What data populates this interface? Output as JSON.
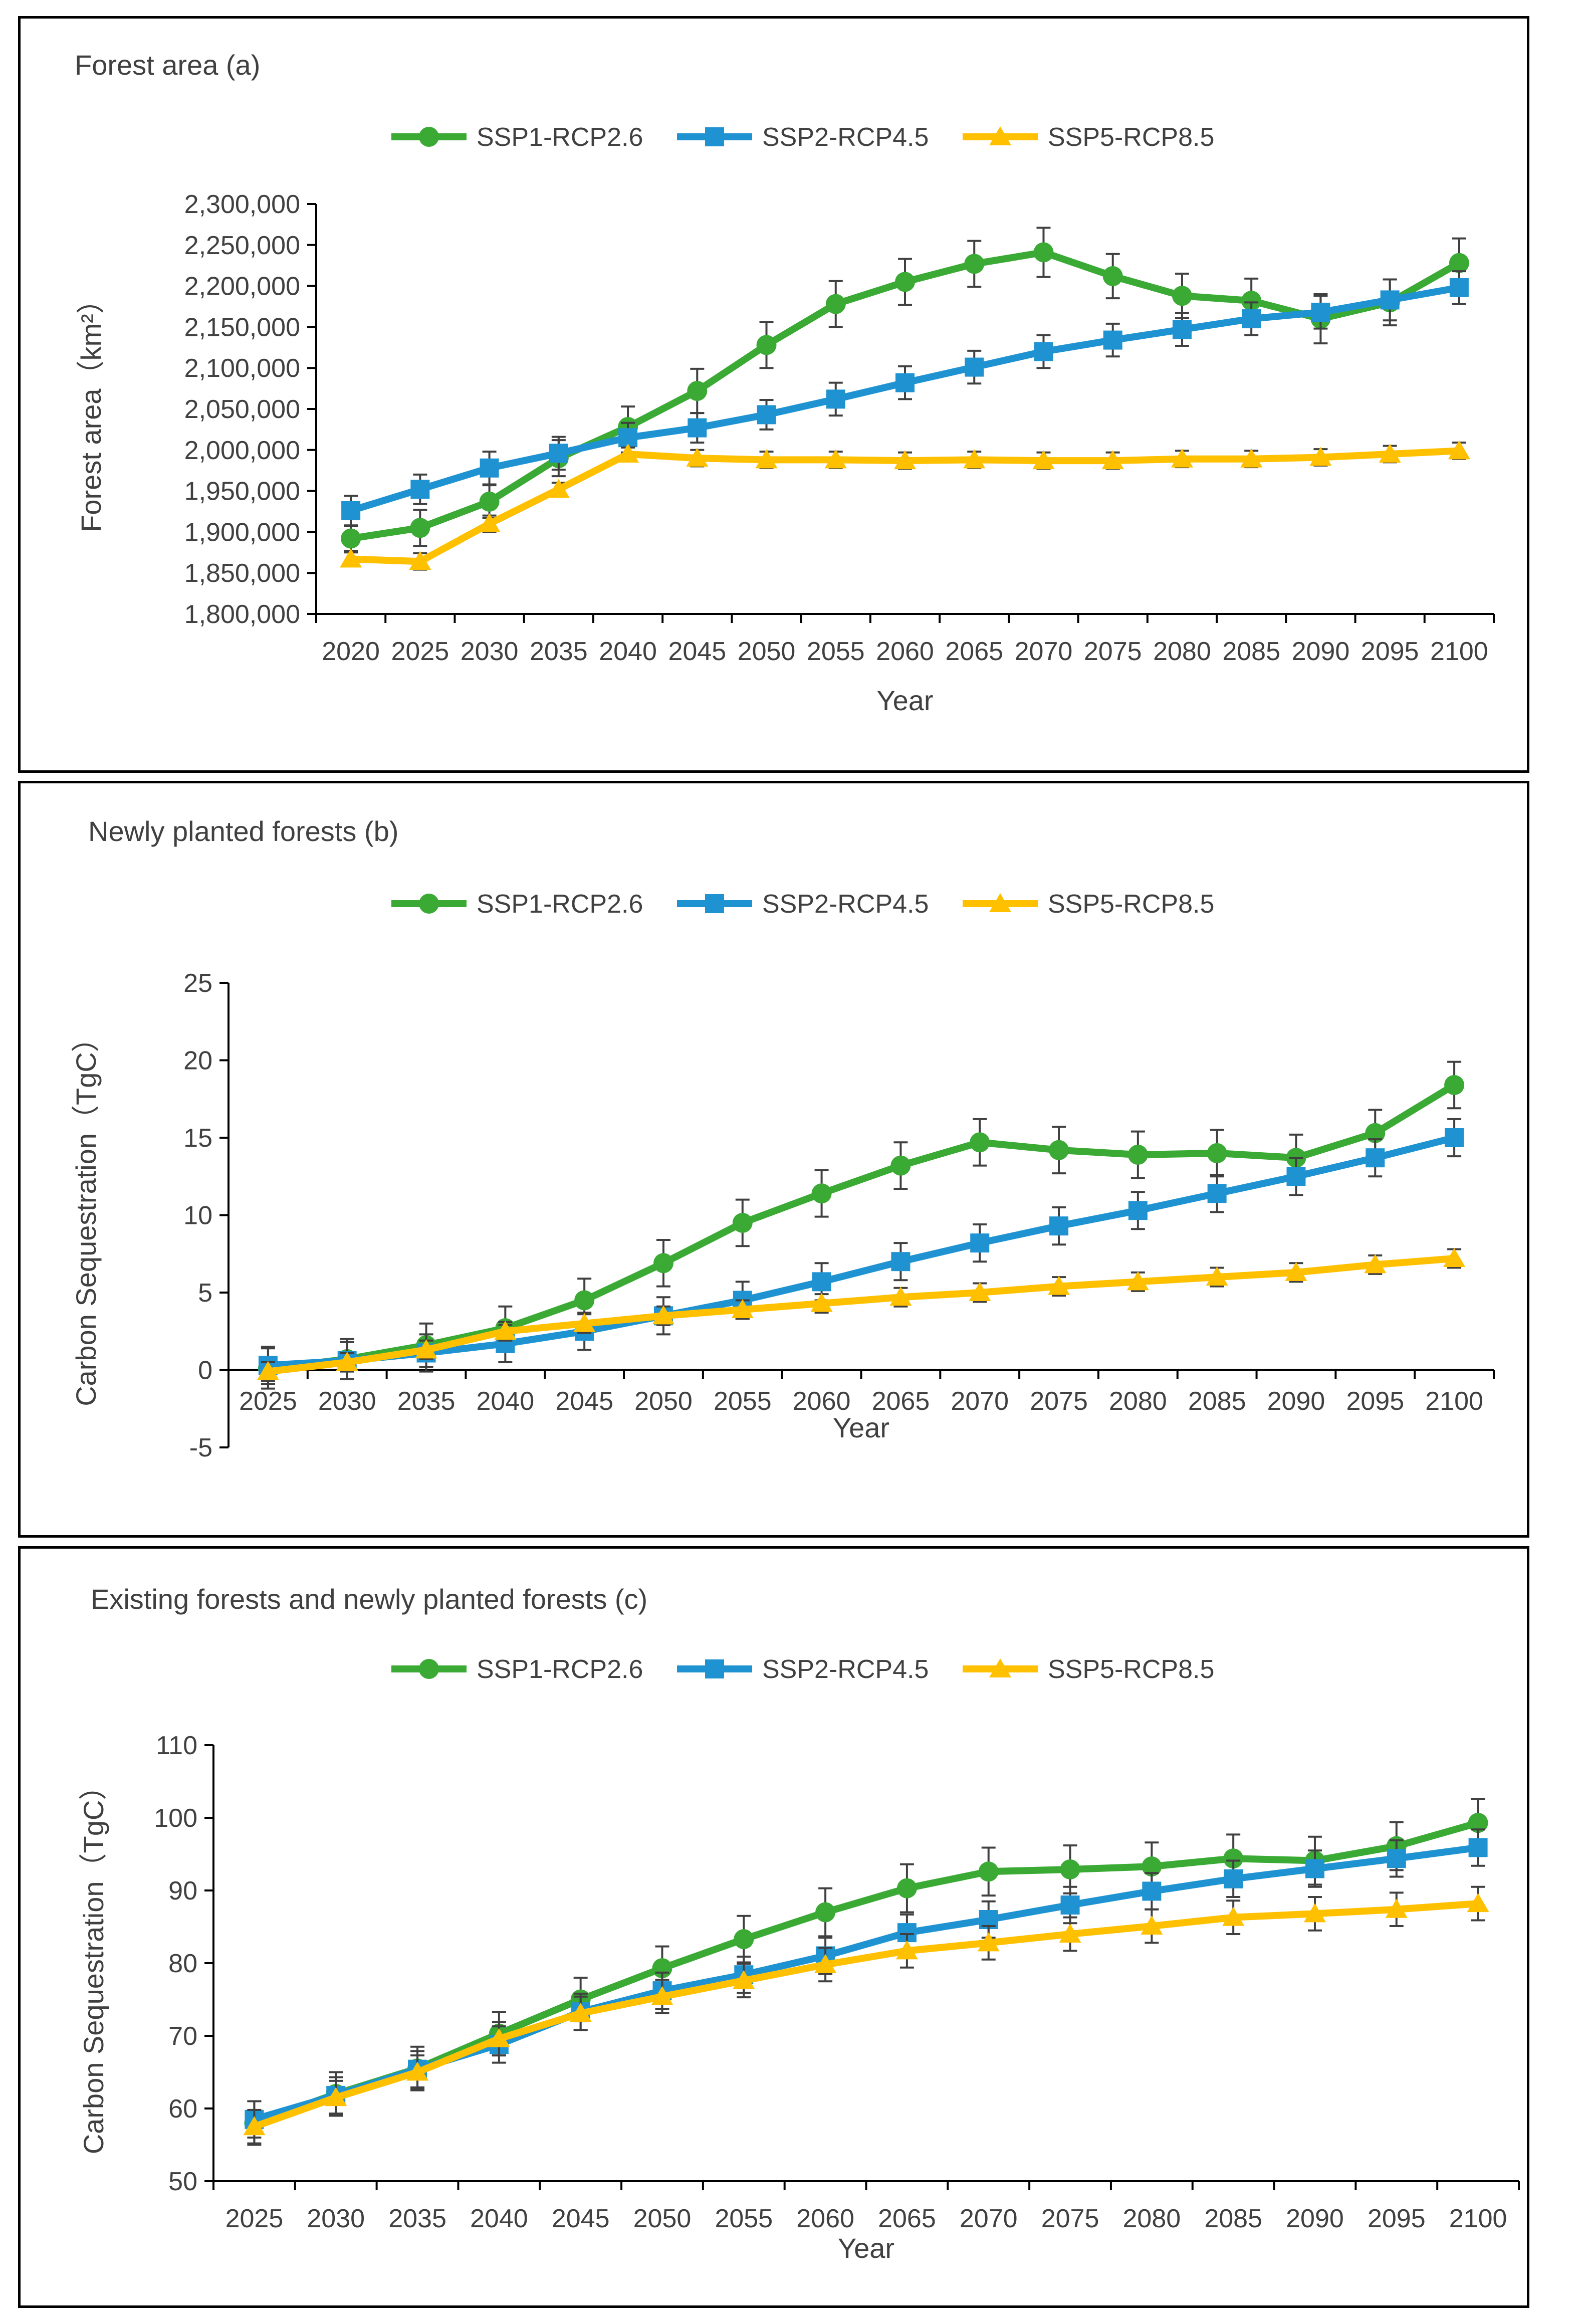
{
  "chart_data": [
    {
      "type": "line",
      "title": "Forest area (a)",
      "xlabel": "Year",
      "ylabel": "Forest area（km²）",
      "ylim": [
        1800000,
        2300000
      ],
      "ystep": 50000,
      "ytick_labels": [
        "1,800,000",
        "1,850,000",
        "1,900,000",
        "1,950,000",
        "2,000,000",
        "2,050,000",
        "2,100,000",
        "2,150,000",
        "2,200,000",
        "2,250,000",
        "2,300,000"
      ],
      "categories": [
        "2020",
        "2025",
        "2030",
        "2035",
        "2040",
        "2045",
        "2050",
        "2055",
        "2060",
        "2065",
        "2070",
        "2075",
        "2080",
        "2085",
        "2090",
        "2095",
        "2100"
      ],
      "legend": "top",
      "series": [
        {
          "name": "SSP1-RCP2.6",
          "color": "#3aaa35",
          "marker": "circle",
          "values": [
            1892000,
            1905000,
            1937000,
            1990000,
            2028000,
            2072000,
            2128000,
            2178000,
            2205000,
            2227000,
            2241000,
            2212000,
            2188000,
            2182000,
            2160000,
            2180000,
            2228000
          ],
          "errors": [
            15000,
            22000,
            20000,
            22000,
            25000,
            27000,
            28000,
            28000,
            28000,
            28000,
            30000,
            27000,
            27000,
            27000,
            30000,
            28000,
            30000
          ]
        },
        {
          "name": "SSP2-RCP4.5",
          "color": "#1f93d2",
          "marker": "square",
          "values": [
            1926000,
            1952000,
            1978000,
            1996000,
            2015000,
            2027000,
            2043000,
            2062000,
            2082000,
            2101000,
            2120000,
            2134000,
            2147000,
            2160000,
            2168000,
            2183000,
            2198000
          ],
          "errors": [
            18000,
            18000,
            20000,
            20000,
            18000,
            18000,
            18000,
            20000,
            20000,
            20000,
            20000,
            20000,
            20000,
            20000,
            20000,
            25000,
            20000
          ]
        },
        {
          "name": "SSP5-RCP8.5",
          "color": "#ffc000",
          "marker": "triangle",
          "values": [
            1867000,
            1864000,
            1910000,
            1952000,
            1995000,
            1990000,
            1988000,
            1988000,
            1987000,
            1988000,
            1987000,
            1987000,
            1989000,
            1989000,
            1991000,
            1995000,
            1999000
          ],
          "errors": [
            8000,
            10000,
            10000,
            8000,
            8000,
            10000,
            10000,
            10000,
            10000,
            10000,
            10000,
            10000,
            10000,
            10000,
            10000,
            10000,
            10000
          ]
        }
      ]
    },
    {
      "type": "line",
      "title": "Newly planted forests (b)",
      "xlabel": "Year",
      "ylabel": "Carbon Sequestration（TgC）",
      "ylim": [
        -5,
        25
      ],
      "ystep": 5,
      "ytick_labels": [
        "-5",
        "0",
        "5",
        "10",
        "15",
        "20",
        "25"
      ],
      "categories": [
        "2025",
        "2030",
        "2035",
        "2040",
        "2045",
        "2050",
        "2055",
        "2060",
        "2065",
        "2070",
        "2075",
        "2080",
        "2085",
        "2090",
        "2095",
        "2100"
      ],
      "legend": "top",
      "series": [
        {
          "name": "SSP1-RCP2.6",
          "color": "#3aaa35",
          "marker": "circle",
          "values": [
            0.1,
            0.7,
            1.6,
            2.7,
            4.5,
            6.9,
            9.5,
            11.4,
            13.2,
            14.7,
            14.2,
            13.9,
            14.0,
            13.7,
            15.3,
            18.4
          ],
          "errors": [
            1.3,
            1.3,
            1.4,
            1.4,
            1.4,
            1.5,
            1.5,
            1.5,
            1.5,
            1.5,
            1.5,
            1.5,
            1.5,
            1.5,
            1.5,
            1.5
          ]
        },
        {
          "name": "SSP2-RCP4.5",
          "color": "#1f93d2",
          "marker": "square",
          "values": [
            0.3,
            0.6,
            1.1,
            1.7,
            2.5,
            3.5,
            4.5,
            5.7,
            7.0,
            8.2,
            9.3,
            10.3,
            11.4,
            12.5,
            13.7,
            15.0
          ],
          "errors": [
            1.2,
            1.2,
            1.2,
            1.2,
            1.2,
            1.2,
            1.2,
            1.2,
            1.2,
            1.2,
            1.2,
            1.2,
            1.2,
            1.2,
            1.2,
            1.2
          ]
        },
        {
          "name": "SSP5-RCP8.5",
          "color": "#ffc000",
          "marker": "triangle",
          "values": [
            -0.1,
            0.5,
            1.3,
            2.5,
            3.0,
            3.5,
            3.9,
            4.3,
            4.7,
            5.0,
            5.4,
            5.7,
            6.0,
            6.3,
            6.8,
            7.2
          ],
          "errors": [
            0.6,
            0.6,
            0.6,
            0.6,
            0.6,
            0.6,
            0.6,
            0.6,
            0.6,
            0.6,
            0.6,
            0.6,
            0.6,
            0.6,
            0.6,
            0.6
          ]
        }
      ]
    },
    {
      "type": "line",
      "title": "Existing forests and newly planted forests (c)",
      "xlabel": "Year",
      "ylabel": "Carbon Sequestration（TgC）",
      "ylim": [
        50,
        110
      ],
      "ystep": 10,
      "ytick_labels": [
        "50",
        "60",
        "70",
        "80",
        "90",
        "100",
        "110"
      ],
      "categories": [
        "2025",
        "2030",
        "2035",
        "2040",
        "2045",
        "2050",
        "2055",
        "2060",
        "2065",
        "2070",
        "2075",
        "2080",
        "2085",
        "2090",
        "2095",
        "2100"
      ],
      "legend": "top",
      "series": [
        {
          "name": "SSP1-RCP2.6",
          "color": "#3aaa35",
          "marker": "circle",
          "values": [
            58.0,
            62.0,
            65.5,
            70.3,
            75.0,
            79.3,
            83.3,
            87.0,
            90.3,
            92.6,
            92.9,
            93.3,
            94.4,
            94.1,
            96.1,
            99.3
          ],
          "errors": [
            3.0,
            3.0,
            3.0,
            3.0,
            3.0,
            3.0,
            3.2,
            3.3,
            3.3,
            3.3,
            3.3,
            3.3,
            3.3,
            3.3,
            3.3,
            3.3
          ]
        },
        {
          "name": "SSP2-RCP4.5",
          "color": "#1f93d2",
          "marker": "square",
          "values": [
            58.5,
            61.8,
            65.4,
            68.8,
            73.3,
            76.2,
            78.4,
            81.0,
            84.2,
            86.0,
            88.0,
            89.9,
            91.6,
            93.0,
            94.4,
            95.9
          ],
          "errors": [
            2.5,
            2.5,
            2.5,
            2.5,
            2.5,
            2.5,
            2.5,
            2.5,
            2.5,
            2.5,
            2.5,
            2.5,
            2.5,
            2.5,
            2.5,
            2.5
          ]
        },
        {
          "name": "SSP5-RCP8.5",
          "color": "#ffc000",
          "marker": "triangle",
          "values": [
            57.5,
            61.5,
            65.0,
            69.6,
            73.1,
            75.4,
            77.6,
            79.8,
            81.7,
            82.8,
            84.0,
            85.1,
            86.3,
            86.8,
            87.4,
            88.2
          ],
          "errors": [
            2.3,
            2.3,
            2.3,
            2.3,
            2.3,
            2.3,
            2.3,
            2.3,
            2.3,
            2.3,
            2.3,
            2.3,
            2.3,
            2.3,
            2.3,
            2.3
          ]
        }
      ]
    }
  ]
}
